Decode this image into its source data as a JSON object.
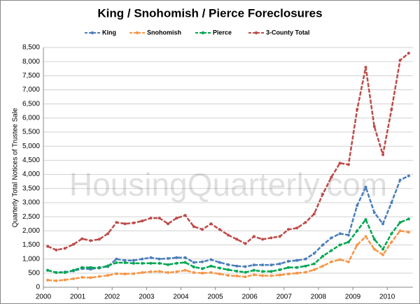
{
  "chart_data": {
    "type": "line",
    "title": "King / Snohomish / Pierce Foreclosures",
    "y_label": "Quarterly Total Notices of Trustee Sale",
    "watermark": "HousingQuarterly.com",
    "x": [
      2000.125,
      2000.375,
      2000.625,
      2000.875,
      2001.125,
      2001.375,
      2001.625,
      2001.875,
      2002.125,
      2002.375,
      2002.625,
      2002.875,
      2003.125,
      2003.375,
      2003.625,
      2003.875,
      2004.125,
      2004.375,
      2004.625,
      2004.875,
      2005.125,
      2005.375,
      2005.625,
      2005.875,
      2006.125,
      2006.375,
      2006.625,
      2006.875,
      2007.125,
      2007.375,
      2007.625,
      2007.875,
      2008.125,
      2008.375,
      2008.625,
      2008.875,
      2009.125,
      2009.375,
      2009.625,
      2009.875,
      2010.125,
      2010.375,
      2010.625
    ],
    "xlim": [
      2000,
      2010.75
    ],
    "xticks": [
      2000,
      2001,
      2002,
      2003,
      2004,
      2005,
      2006,
      2007,
      2008,
      2009,
      2010
    ],
    "ylim": [
      0,
      8500
    ],
    "yticks": [
      0,
      500,
      {
        "value": 1000,
        "label": "1,000"
      },
      {
        "value": 1500,
        "label": "1,500"
      },
      {
        "value": 2000,
        "label": "2,000"
      },
      {
        "value": 2500,
        "label": "2,500"
      },
      {
        "value": 3000,
        "label": "3,000"
      },
      {
        "value": 3500,
        "label": "3,500"
      },
      {
        "value": 4000,
        "label": "4,000"
      },
      {
        "value": 4500,
        "label": "4,500"
      },
      {
        "value": 5000,
        "label": "5,000"
      },
      {
        "value": 5500,
        "label": "5,500"
      },
      {
        "value": 6000,
        "label": "6,000"
      },
      {
        "value": 6500,
        "label": "6,500"
      },
      {
        "value": 7000,
        "label": "7,000"
      },
      {
        "value": 7500,
        "label": "7,500"
      },
      {
        "value": 8000,
        "label": "8,000"
      },
      {
        "value": 8500,
        "label": "8,500"
      }
    ],
    "grid": true,
    "legend": "top",
    "series": [
      {
        "name": "King",
        "color": "#4a7ebb",
        "values": [
          600,
          520,
          540,
          580,
          660,
          640,
          700,
          730,
          1000,
          950,
          950,
          1000,
          1050,
          1000,
          1020,
          1050,
          1050,
          880,
          900,
          980,
          880,
          800,
          750,
          730,
          790,
          790,
          790,
          830,
          920,
          950,
          1000,
          1200,
          1500,
          1750,
          1900,
          1850,
          2900,
          3550,
          2650,
          2250,
          3000,
          3800,
          3950
        ]
      },
      {
        "name": "Snohomish",
        "color": "#f79646",
        "values": [
          250,
          230,
          260,
          300,
          350,
          340,
          380,
          420,
          480,
          470,
          480,
          520,
          550,
          560,
          520,
          550,
          600,
          520,
          500,
          520,
          470,
          420,
          400,
          370,
          440,
          410,
          410,
          430,
          470,
          500,
          530,
          620,
          750,
          900,
          980,
          900,
          1500,
          1800,
          1350,
          1150,
          1600,
          2000,
          1950
        ]
      },
      {
        "name": "Pierce",
        "color": "#00a651",
        "values": [
          600,
          520,
          520,
          600,
          700,
          700,
          680,
          760,
          870,
          870,
          850,
          850,
          850,
          850,
          800,
          850,
          880,
          720,
          660,
          750,
          680,
          620,
          570,
          530,
          600,
          560,
          560,
          620,
          700,
          700,
          750,
          830,
          1100,
          1300,
          1500,
          1600,
          2000,
          2400,
          1700,
          1350,
          1900,
          2300,
          2420
        ]
      },
      {
        "name": "3-County Total",
        "color": "#be4b48",
        "values": [
          1450,
          1320,
          1380,
          1520,
          1720,
          1650,
          1700,
          1900,
          2300,
          2250,
          2280,
          2350,
          2450,
          2450,
          2250,
          2450,
          2550,
          2150,
          2050,
          2250,
          2050,
          1850,
          1700,
          1550,
          1800,
          1700,
          1750,
          1800,
          2050,
          2100,
          2300,
          2600,
          3300,
          3900,
          4400,
          4350,
          6300,
          7800,
          5700,
          4700,
          6300,
          8050,
          8300
        ]
      }
    ]
  }
}
